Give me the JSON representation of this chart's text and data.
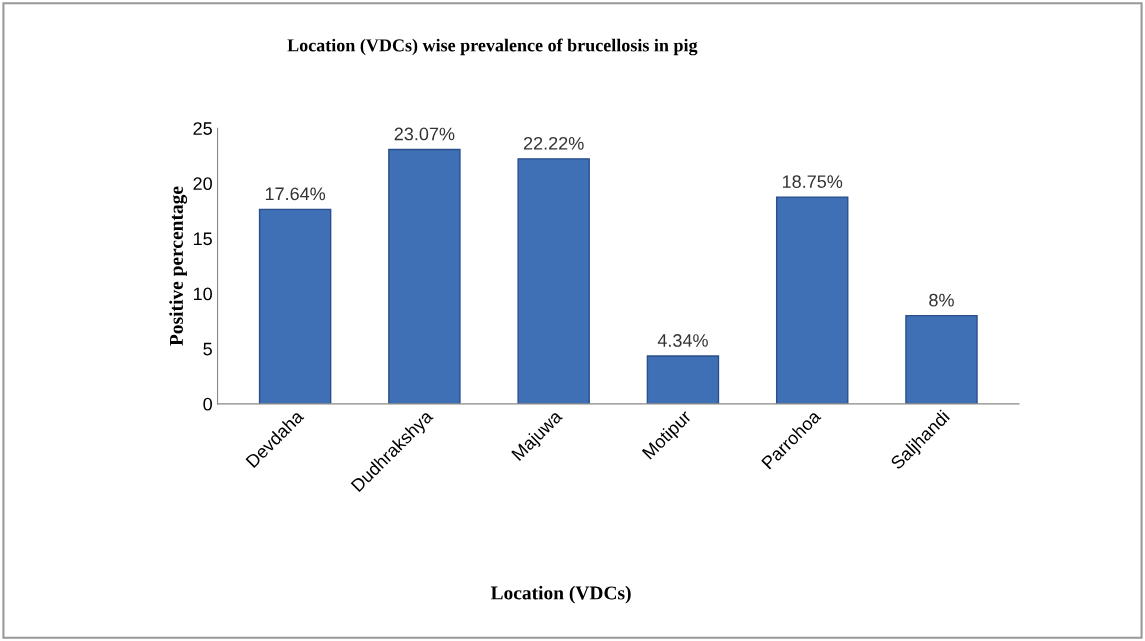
{
  "chart_data": {
    "type": "bar",
    "title": "Location (VDCs) wise prevalence of brucellosis in pig",
    "xlabel": "Location (VDCs)",
    "ylabel": "Positive percentage",
    "categories": [
      "Devdaha",
      "Dudhrakshya",
      "Majuwa",
      "Motipur",
      "Parrohoa",
      "Saljhandi"
    ],
    "values": [
      17.64,
      23.07,
      22.22,
      4.34,
      18.75,
      8
    ],
    "value_labels": [
      "17.64%",
      "23.07%",
      "22.22%",
      "4.34%",
      "18.75%",
      "8%"
    ],
    "color": "#3f6fb5",
    "ylim": [
      0,
      25
    ],
    "yticks": [
      0,
      5,
      10,
      15,
      20,
      25
    ],
    "grid": false
  }
}
